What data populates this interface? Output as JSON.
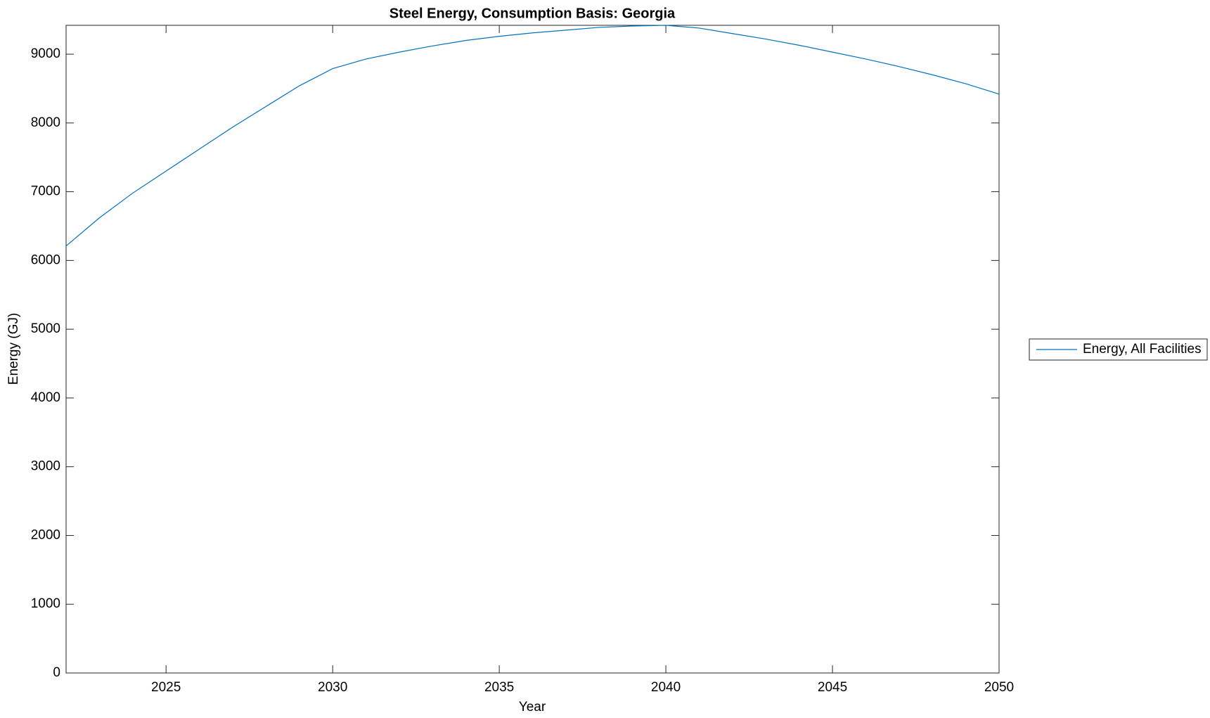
{
  "chart_data": {
    "type": "line",
    "title": "Steel Energy, Consumption Basis: Georgia",
    "x_label": "Year",
    "y_label": "Energy (GJ)",
    "x": [
      2022,
      2023,
      2024,
      2025,
      2026,
      2027,
      2028,
      2029,
      2030,
      2031,
      2032,
      2033,
      2034,
      2035,
      2036,
      2037,
      2038,
      2039,
      2040,
      2041,
      2042,
      2043,
      2044,
      2045,
      2046,
      2047,
      2048,
      2049,
      2050
    ],
    "series": [
      {
        "name": "Energy, All Facilities",
        "color": "#0072bd",
        "values": [
          6210,
          6620,
          6980,
          7300,
          7620,
          7940,
          8240,
          8540,
          8790,
          8930,
          9030,
          9120,
          9200,
          9260,
          9310,
          9350,
          9390,
          9410,
          9420,
          9380,
          9300,
          9220,
          9130,
          9030,
          8930,
          8820,
          8700,
          8570,
          8420
        ]
      }
    ],
    "xlim": [
      2022,
      2050
    ],
    "xticks": [
      2025,
      2030,
      2035,
      2040,
      2045,
      2050
    ],
    "ylim": [
      0,
      9420
    ],
    "yticks": [
      0,
      1000,
      2000,
      3000,
      4000,
      5000,
      6000,
      7000,
      8000,
      9000
    ],
    "grid": false,
    "legend": "outside-right"
  }
}
